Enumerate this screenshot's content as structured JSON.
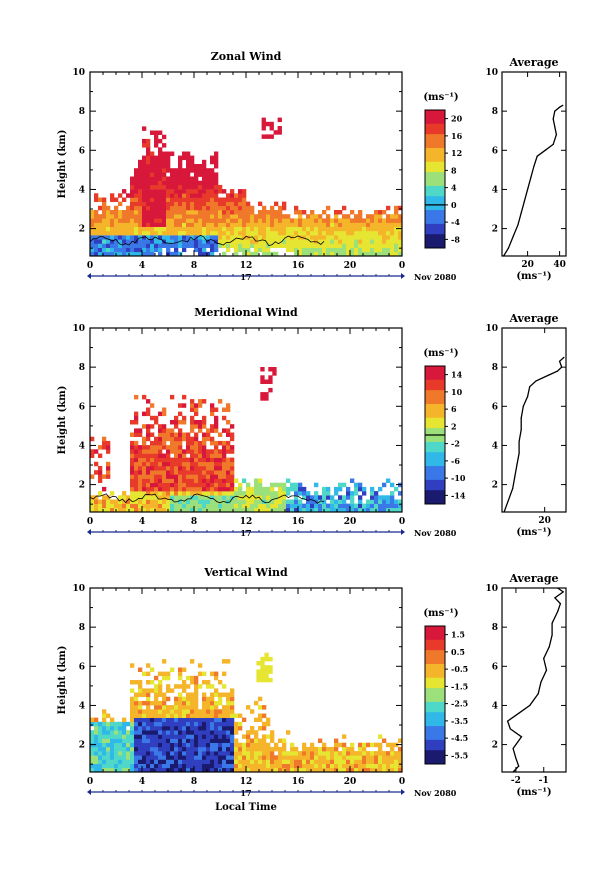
{
  "colors": {
    "colormap": [
      "#1a1a6e",
      "#2f3fbf",
      "#3a78e8",
      "#2fb8e8",
      "#4fd8c8",
      "#9be07a",
      "#e6e632",
      "#f5b52a",
      "#f0782a",
      "#e83a2a",
      "#d8183a"
    ],
    "contour": "#000000",
    "axis": "#000000"
  },
  "chart_data": [
    {
      "id": "zonal",
      "type": "heatmap",
      "title": "Zonal Wind",
      "ylabel": "Height (km)",
      "xlabel": "",
      "x_ticks": [
        "0",
        "4",
        "8",
        "12",
        "16",
        "20",
        "0"
      ],
      "y_ticks": [
        "2",
        "4",
        "6",
        "8",
        "10"
      ],
      "date_marker": "17",
      "date_label": "Nov 2080",
      "xlim": [
        0,
        24
      ],
      "ylim": [
        0.6,
        10
      ],
      "colorbar": {
        "unit": "(ms⁻¹)",
        "labels": [
          "20",
          "16",
          "12",
          "8",
          "4",
          "0",
          "-4",
          "-8"
        ],
        "range": [
          -10,
          22
        ],
        "zero_line": 0
      },
      "profile": {
        "title": "Average",
        "xlabel": "(ms⁻¹)",
        "x_ticks": [
          "20",
          "40"
        ],
        "y_ticks": [
          "2",
          "4",
          "6",
          "8",
          "10"
        ],
        "xlim": [
          4,
          44
        ],
        "points": [
          [
            5,
            0.6
          ],
          [
            8,
            1.0
          ],
          [
            11,
            1.6
          ],
          [
            14,
            2.2
          ],
          [
            16,
            2.8
          ],
          [
            18,
            3.4
          ],
          [
            20,
            4.0
          ],
          [
            22,
            4.6
          ],
          [
            24,
            5.2
          ],
          [
            26,
            5.7
          ],
          [
            31,
            6.0
          ],
          [
            36,
            6.3
          ],
          [
            38,
            6.8
          ],
          [
            37,
            7.2
          ],
          [
            36,
            7.6
          ],
          [
            37,
            8.0
          ],
          [
            40,
            8.2
          ],
          [
            42,
            8.3
          ]
        ]
      }
    },
    {
      "id": "meridional",
      "type": "heatmap",
      "title": "Meridional Wind",
      "ylabel": "Height (km)",
      "xlabel": "",
      "x_ticks": [
        "0",
        "4",
        "8",
        "12",
        "16",
        "20",
        "0"
      ],
      "y_ticks": [
        "2",
        "4",
        "6",
        "8",
        "10"
      ],
      "date_marker": "17",
      "date_label": "Nov 2080",
      "xlim": [
        0,
        24
      ],
      "ylim": [
        0.6,
        10
      ],
      "colorbar": {
        "unit": "(ms⁻¹)",
        "labels": [
          "14",
          "10",
          "6",
          "2",
          "-2",
          "-6",
          "-10",
          "-14"
        ],
        "range": [
          -16,
          16
        ],
        "zero_line": 0
      },
      "profile": {
        "title": "Average",
        "xlabel": "(ms⁻¹)",
        "x_ticks": [
          "20"
        ],
        "y_ticks": [
          "2",
          "4",
          "6",
          "8",
          "10"
        ],
        "xlim": [
          0,
          30
        ],
        "points": [
          [
            1,
            0.6
          ],
          [
            3,
            1.2
          ],
          [
            5,
            1.8
          ],
          [
            6,
            2.4
          ],
          [
            7,
            3.0
          ],
          [
            8,
            3.6
          ],
          [
            8,
            4.2
          ],
          [
            9,
            4.8
          ],
          [
            9,
            5.4
          ],
          [
            10,
            6.0
          ],
          [
            12,
            6.5
          ],
          [
            13,
            7.0
          ],
          [
            16,
            7.3
          ],
          [
            22,
            7.6
          ],
          [
            26,
            7.8
          ],
          [
            28,
            8.0
          ],
          [
            27,
            8.3
          ],
          [
            29,
            8.5
          ]
        ]
      }
    },
    {
      "id": "vertical",
      "type": "heatmap",
      "title": "Vertical Wind",
      "ylabel": "Height (km)",
      "xlabel": "Local Time",
      "x_ticks": [
        "0",
        "4",
        "8",
        "12",
        "16",
        "20",
        "0"
      ],
      "y_ticks": [
        "2",
        "4",
        "6",
        "8",
        "10"
      ],
      "date_marker": "17",
      "date_label": "Nov 2080",
      "xlim": [
        0,
        24
      ],
      "ylim": [
        0.6,
        10
      ],
      "colorbar": {
        "unit": "(ms⁻¹)",
        "labels": [
          "1.5",
          "0.5",
          "-0.5",
          "-1.5",
          "-2.5",
          "-3.5",
          "-4.5",
          "-5.5"
        ],
        "range": [
          -6,
          2
        ],
        "zero_line": null
      },
      "profile": {
        "title": "Average",
        "xlabel": "(ms⁻¹)",
        "x_ticks": [
          "-2",
          "-1"
        ],
        "y_ticks": [
          "2",
          "4",
          "6",
          "8",
          "10"
        ],
        "xlim": [
          -2.5,
          -0.2
        ],
        "points": [
          [
            -2.1,
            0.6
          ],
          [
            -1.9,
            0.9
          ],
          [
            -2.0,
            1.3
          ],
          [
            -2.1,
            1.8
          ],
          [
            -1.8,
            2.4
          ],
          [
            -2.2,
            2.8
          ],
          [
            -2.3,
            3.2
          ],
          [
            -1.9,
            3.6
          ],
          [
            -1.5,
            4.0
          ],
          [
            -1.2,
            4.6
          ],
          [
            -1.1,
            5.2
          ],
          [
            -0.9,
            5.8
          ],
          [
            -1.0,
            6.4
          ],
          [
            -0.8,
            7.0
          ],
          [
            -0.7,
            7.6
          ],
          [
            -0.7,
            8.2
          ],
          [
            -0.5,
            8.8
          ],
          [
            -0.4,
            9.2
          ],
          [
            -0.6,
            9.5
          ],
          [
            -0.3,
            9.8
          ],
          [
            -0.5,
            10
          ]
        ]
      }
    }
  ]
}
